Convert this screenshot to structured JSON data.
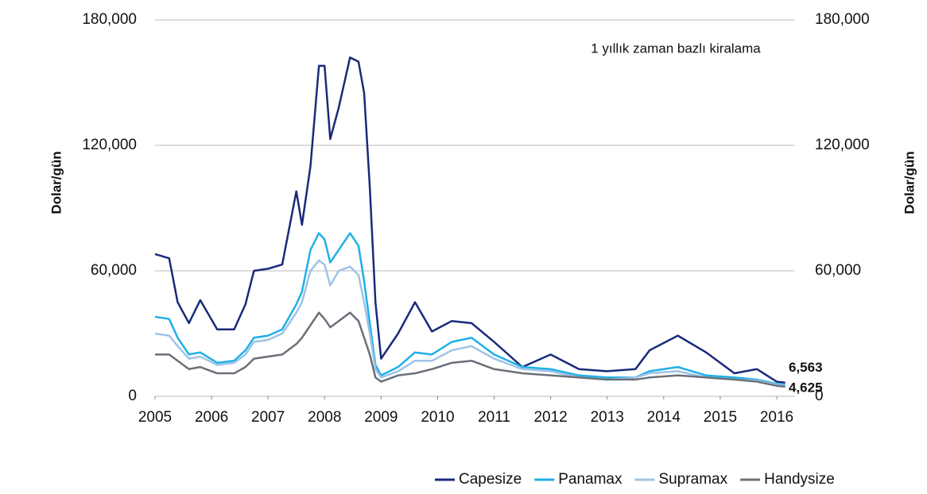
{
  "chart_data": {
    "type": "line",
    "annotation": "1 yıllık zaman bazlı kiralama",
    "ylabel": "Dolar/gün",
    "y2label": "Dolar/gün",
    "x": [
      2005,
      2005.25,
      2005.4,
      2005.6,
      2005.8,
      2006.1,
      2006.4,
      2006.6,
      2006.75,
      2007,
      2007.25,
      2007.5,
      2007.6,
      2007.75,
      2007.9,
      2008,
      2008.1,
      2008.25,
      2008.45,
      2008.6,
      2008.7,
      2008.8,
      2008.9,
      2009,
      2009.3,
      2009.6,
      2009.9,
      2010.25,
      2010.6,
      2011,
      2011.5,
      2012,
      2012.5,
      2013,
      2013.5,
      2013.75,
      2014.25,
      2014.75,
      2015.25,
      2015.65,
      2016,
      2016.15
    ],
    "series": [
      {
        "name": "Capesize",
        "color": "#1a2a7a",
        "values": [
          68000,
          66000,
          45000,
          35000,
          46000,
          32000,
          32000,
          44000,
          60000,
          61000,
          63000,
          98000,
          82000,
          110000,
          158000,
          158000,
          123000,
          138000,
          162000,
          160000,
          145000,
          100000,
          45000,
          18000,
          30000,
          45000,
          31000,
          36000,
          35000,
          26000,
          14000,
          20000,
          13000,
          12000,
          13000,
          22000,
          29000,
          21000,
          11000,
          13000,
          7000,
          6563
        ]
      },
      {
        "name": "Panamax",
        "color": "#1fb0e6",
        "values": [
          38000,
          37000,
          28000,
          20000,
          21000,
          16000,
          17000,
          22000,
          28000,
          29000,
          32000,
          44000,
          50000,
          70000,
          78000,
          75000,
          64000,
          70000,
          78000,
          72000,
          55000,
          35000,
          15000,
          10000,
          14000,
          21000,
          20000,
          26000,
          28000,
          20000,
          14000,
          13000,
          10000,
          9000,
          9000,
          12000,
          14000,
          10000,
          9000,
          8000,
          6000,
          5500
        ]
      },
      {
        "name": "Supramax",
        "color": "#9fc3e6",
        "values": [
          30000,
          29000,
          24000,
          18000,
          19000,
          15000,
          16000,
          20000,
          26000,
          27000,
          30000,
          40000,
          45000,
          60000,
          65000,
          63000,
          53000,
          60000,
          62000,
          58000,
          45000,
          30000,
          13000,
          9000,
          12000,
          17000,
          17000,
          22000,
          24000,
          18000,
          13000,
          12000,
          9000,
          8000,
          9000,
          11000,
          12000,
          9000,
          8000,
          7500,
          5500,
          5000
        ]
      },
      {
        "name": "Handysize",
        "color": "#6a7078",
        "values": [
          20000,
          20000,
          17000,
          13000,
          14000,
          11000,
          11000,
          14000,
          18000,
          19000,
          20000,
          25000,
          28000,
          34000,
          40000,
          37000,
          33000,
          36000,
          40000,
          36000,
          28000,
          20000,
          9000,
          7000,
          10000,
          11000,
          13000,
          16000,
          17000,
          13000,
          11000,
          10000,
          9000,
          8000,
          8000,
          9000,
          10000,
          9000,
          8000,
          7000,
          5000,
          4625
        ]
      }
    ],
    "end_labels": [
      {
        "series": 0,
        "value": 6563,
        "label": "6,563"
      },
      {
        "series": 3,
        "value": 4625,
        "label": "4,625"
      }
    ],
    "xlim": [
      2005,
      2016.3
    ],
    "xticks": [
      2005,
      2006,
      2007,
      2008,
      2009,
      2010,
      2011,
      2012,
      2013,
      2014,
      2015,
      2016
    ],
    "ylim": [
      0,
      180000
    ],
    "yticks": [
      0,
      {
        "value": 60000,
        "label": "60,000"
      },
      {
        "value": 120000,
        "label": "120,000"
      },
      {
        "value": 180000,
        "label": "180,000"
      }
    ],
    "y2lim": [
      0,
      180000
    ],
    "y2ticks": [
      0,
      {
        "value": 60000,
        "label": "60,000"
      },
      {
        "value": 120000,
        "label": "120,000"
      },
      {
        "value": 180000,
        "label": "180,000"
      }
    ],
    "grid": true,
    "legend": "bottom-right"
  }
}
